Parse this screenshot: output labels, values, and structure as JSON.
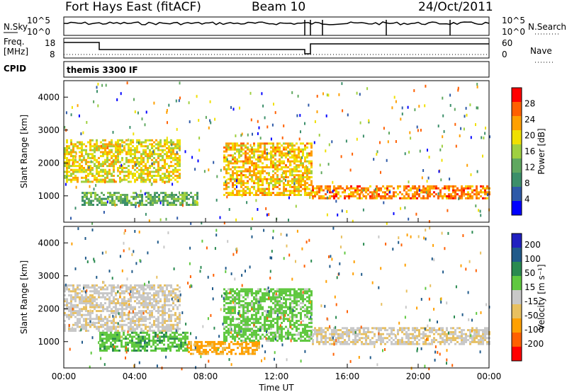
{
  "header": {
    "station": "Fort Hays East (fitACF)",
    "beam": "Beam 10",
    "date": "24/Oct/2011"
  },
  "labels": {
    "nsky": "N.Sky",
    "nsearch": "N.Search",
    "freq_line1": "Freq.",
    "freq_line2": "[MHz]",
    "nave": "Nave",
    "cpid": "CPID",
    "cpid_value": "themis 3300 IF",
    "nsky_ticks": [
      "10^5",
      "10^0"
    ],
    "nsearch_ticks": [
      "10^5",
      "10^0"
    ],
    "freq_ticks": [
      "18",
      "8"
    ],
    "nave_ticks": [
      "60",
      "0"
    ],
    "xlabel": "Time UT"
  },
  "colors": {
    "power_scale": [
      "#0000ff",
      "#2e5aa8",
      "#3c8f6a",
      "#60a860",
      "#9fd040",
      "#f0e000",
      "#ffa000",
      "#ff6000",
      "#ff0000"
    ],
    "velocity_scale": [
      "#2020c0",
      "#205a8a",
      "#2a8a50",
      "#60c840",
      "#c8c8c8",
      "#e8c060",
      "#ffa000",
      "#ff6000",
      "#ff0000"
    ]
  },
  "chart_data": [
    {
      "type": "heatmap",
      "panel": "power",
      "ylabel": "Slant Range [km]",
      "xlabel": "Time UT",
      "ylim": [
        200,
        4500
      ],
      "yticks": [
        "1000",
        "2000",
        "3000",
        "4000"
      ],
      "xticks": [
        "00:00",
        "04:00",
        "08:00",
        "12:00",
        "16:00",
        "20:00",
        "00:00"
      ],
      "colorbar_label": "Power [dB]",
      "colorbar_ticks": [
        "4",
        "8",
        "12",
        "16",
        "20",
        "24",
        "28"
      ],
      "bands": [
        {
          "t": [
            0,
            6.5
          ],
          "range": [
            1400,
            2700
          ],
          "value": 22
        },
        {
          "t": [
            1,
            7.5
          ],
          "range": [
            700,
            1100
          ],
          "value": 14
        },
        {
          "t": [
            9,
            14
          ],
          "range": [
            1000,
            2600
          ],
          "value": 24
        },
        {
          "t": [
            14,
            24
          ],
          "range": [
            900,
            1300
          ],
          "value": 28
        }
      ]
    },
    {
      "type": "heatmap",
      "panel": "velocity",
      "ylabel": "Slant Range [km]",
      "xlabel": "Time UT",
      "ylim": [
        200,
        4500
      ],
      "yticks": [
        "1000",
        "2000",
        "3000",
        "4000"
      ],
      "xticks": [
        "00:00",
        "04:00",
        "08:00",
        "12:00",
        "16:00",
        "20:00",
        "00:00"
      ],
      "colorbar_label": "Velocity [m s⁻¹]",
      "colorbar_ticks": [
        "200",
        "100",
        "50",
        "15",
        "-15",
        "-50",
        "-100",
        "-200"
      ],
      "bands": [
        {
          "t": [
            0,
            6.5
          ],
          "range": [
            1300,
            2700
          ],
          "value": -5
        },
        {
          "t": [
            2,
            7
          ],
          "range": [
            700,
            1300
          ],
          "value": 40
        },
        {
          "t": [
            7,
            11
          ],
          "range": [
            600,
            1000
          ],
          "value": -60
        },
        {
          "t": [
            9,
            14
          ],
          "range": [
            1000,
            2600
          ],
          "value": 30
        },
        {
          "t": [
            14,
            24
          ],
          "range": [
            900,
            1400
          ],
          "value": -10
        }
      ]
    }
  ]
}
